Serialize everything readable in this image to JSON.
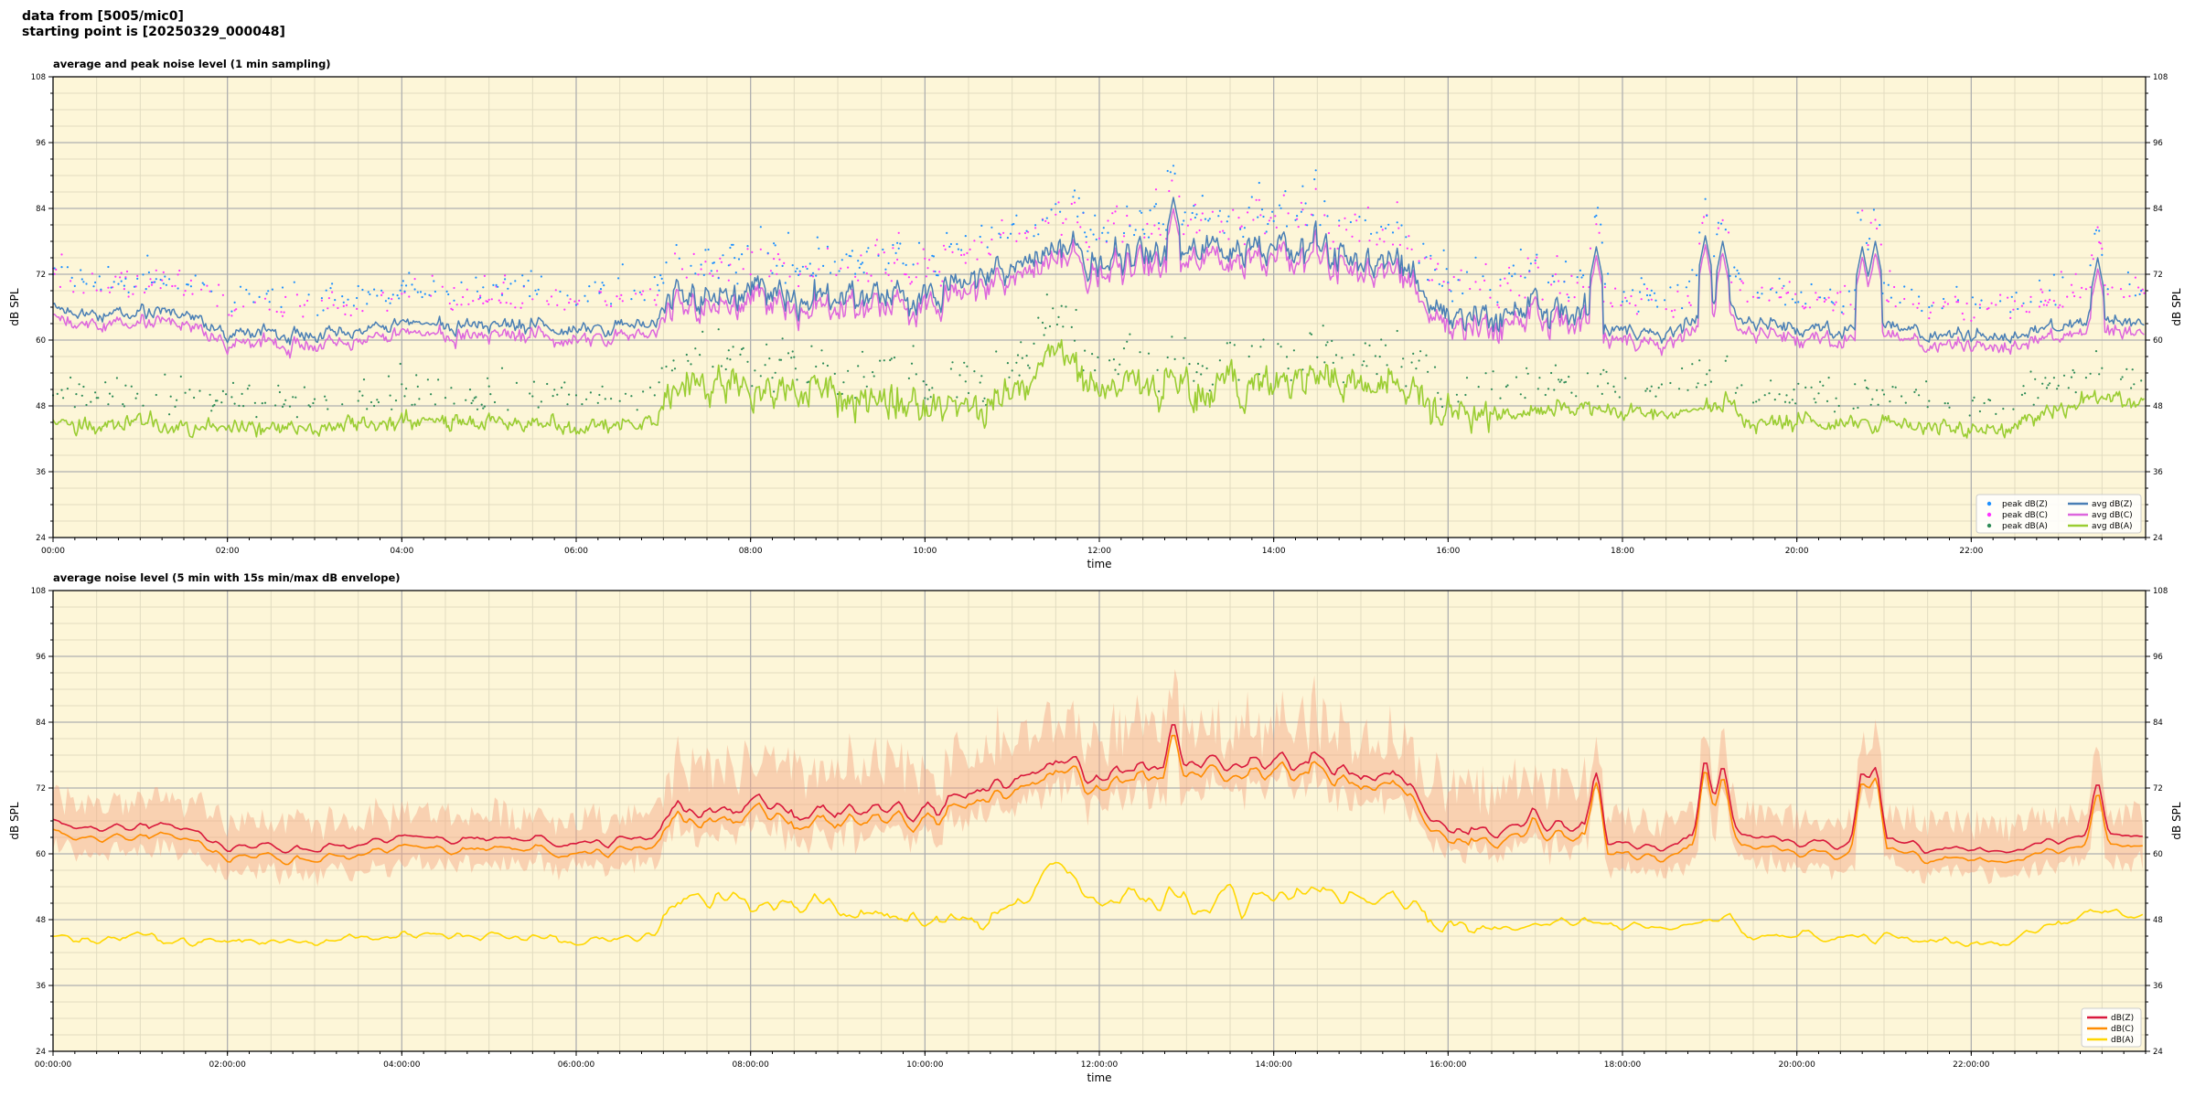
{
  "header": {
    "line1": "data from [5005/mic0]",
    "line2": "starting point is [20250329_000048]"
  },
  "colors": {
    "plot_bg": "#fdf6d8",
    "peak_z": "#1e90ff",
    "peak_c": "#ff33ff",
    "peak_a": "#2e8b57",
    "avg_z": "#4a7fb5",
    "avg_c": "#dd66dd",
    "avg_a": "#9acd32",
    "dbz": "#d9183b",
    "dbc": "#ff8c00",
    "dba": "#ffd700",
    "envelope": "#f4a582"
  },
  "chart_data": [
    {
      "type": "line",
      "title": "average and peak noise level (1 min sampling)",
      "xlabel": "time",
      "ylabel": "dB SPL",
      "ylim": [
        24,
        108
      ],
      "xlim_hours": [
        0,
        24
      ],
      "yticks": [
        24,
        36,
        48,
        60,
        72,
        84,
        96,
        108
      ],
      "xtick_labels": [
        "00:00",
        "02:00",
        "04:00",
        "06:00",
        "08:00",
        "10:00",
        "12:00",
        "14:00",
        "16:00",
        "18:00",
        "20:00",
        "22:00"
      ],
      "grid": true,
      "legend_position": "bottom-right",
      "legend_columns": 2,
      "series_keyframes": {
        "x_hours": [
          0,
          0.5,
          1,
          1.5,
          2,
          3,
          4,
          5,
          6,
          6.9,
          7.1,
          8,
          9,
          10,
          10.5,
          11,
          11.5,
          12,
          13,
          14,
          14.5,
          15,
          15.5,
          16,
          16.5,
          17,
          17.6,
          17.8,
          18.5,
          19,
          19.2,
          19.4,
          20,
          20.5,
          21,
          21.5,
          22,
          22.5,
          23,
          23.5,
          24
        ],
        "avg_z": [
          66,
          64,
          66,
          65,
          61,
          61,
          63,
          63,
          62,
          63,
          68,
          69,
          68,
          68,
          71,
          73,
          77,
          75,
          76,
          77,
          76,
          75,
          74,
          64,
          65,
          66,
          65,
          62,
          61,
          65,
          69,
          63,
          62,
          62,
          63,
          61,
          61,
          61,
          63,
          64,
          63
        ],
        "avg_a": [
          45,
          44,
          45,
          44,
          44,
          44,
          45,
          45,
          44,
          45,
          52,
          51,
          50,
          48,
          48,
          50,
          58,
          52,
          51,
          52,
          54,
          53,
          52,
          47,
          46,
          47,
          48,
          47,
          46,
          48,
          50,
          45,
          45,
          45,
          45,
          44,
          44,
          44,
          48,
          50,
          48
        ],
        "peak_offset": 9
      },
      "series": [
        {
          "name": "peak dB(Z)",
          "kind": "scatter"
        },
        {
          "name": "peak dB(C)",
          "kind": "scatter"
        },
        {
          "name": "peak dB(A)",
          "kind": "scatter"
        },
        {
          "name": "avg dB(Z)",
          "kind": "line"
        },
        {
          "name": "avg dB(C)",
          "kind": "line"
        },
        {
          "name": "avg dB(A)",
          "kind": "line"
        }
      ]
    },
    {
      "type": "line",
      "title": "average noise level (5 min with 15s min/max dB envelope)",
      "xlabel": "time",
      "ylabel": "dB SPL",
      "ylim": [
        24,
        108
      ],
      "xlim_hours": [
        0,
        24
      ],
      "yticks": [
        24,
        36,
        48,
        60,
        72,
        84,
        96,
        108
      ],
      "xtick_labels": [
        "00:00:00",
        "02:00:00",
        "04:00:00",
        "06:00:00",
        "08:00:00",
        "10:00:00",
        "12:00:00",
        "14:00:00",
        "16:00:00",
        "18:00:00",
        "20:00:00",
        "22:00:00"
      ],
      "grid": true,
      "legend_position": "bottom-right",
      "series": [
        {
          "name": "dB(Z)"
        },
        {
          "name": "dB(C)"
        },
        {
          "name": "dB(A)"
        }
      ]
    }
  ]
}
